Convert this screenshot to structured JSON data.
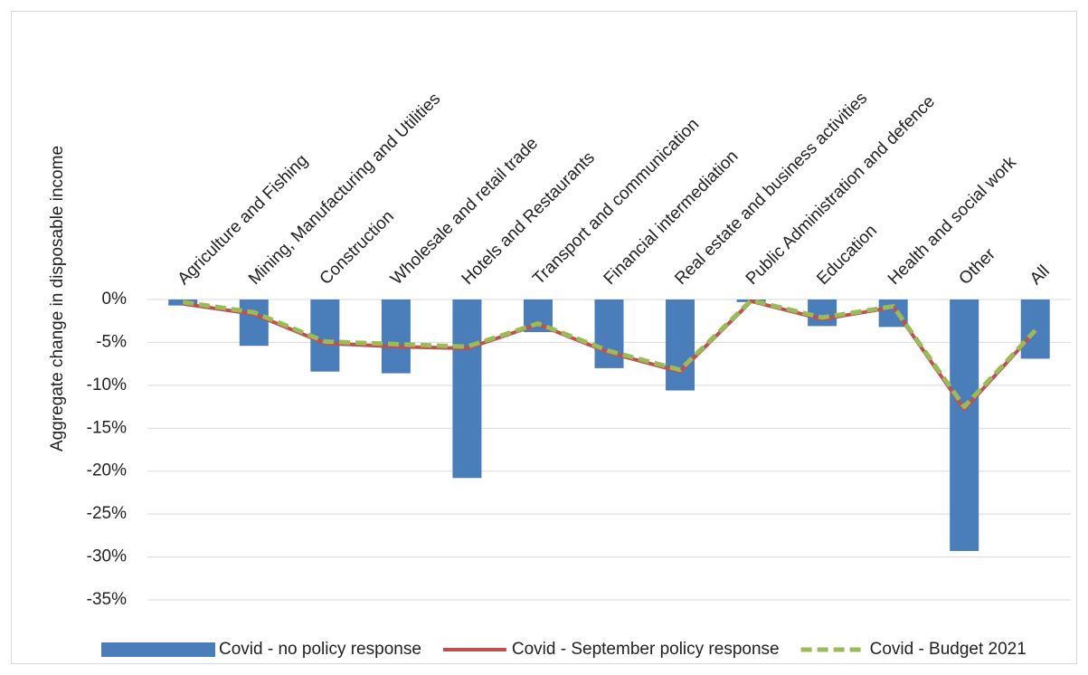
{
  "chart_data": {
    "type": "bar",
    "y_label": "Aggregate change in disposable income",
    "categories": [
      "Agriculture and Fishing",
      "Mining, Manufacturing and Utilities",
      "Construction",
      "Wholesale and retail trade",
      "Hotels and Restaurants",
      "Transport and communication",
      "Financial intermediation",
      "Real estate and business activities",
      "Public Administration and defence",
      "Education",
      "Health and social work",
      "Other",
      "All"
    ],
    "series": [
      {
        "name": "Covid - no policy response",
        "type": "bar",
        "color": "#4a7ebb",
        "values": [
          -0.7,
          -5.4,
          -8.4,
          -8.6,
          -20.8,
          -3.8,
          -8.0,
          -10.6,
          -0.3,
          -3.1,
          -3.2,
          -29.3,
          -6.9
        ]
      },
      {
        "name": "Covid - September policy response",
        "type": "line",
        "color": "#c0504d",
        "dashed": false,
        "values": [
          -0.5,
          -1.7,
          -5.1,
          -5.5,
          -5.7,
          -2.9,
          -6.2,
          -8.4,
          -0.2,
          -2.3,
          -0.9,
          -12.8,
          -3.7
        ]
      },
      {
        "name": "Covid - Budget 2021",
        "type": "line",
        "color": "#9bbb59",
        "dashed": true,
        "values": [
          -0.3,
          -1.5,
          -4.9,
          -5.2,
          -5.5,
          -2.8,
          -6.0,
          -8.2,
          -0.1,
          -2.1,
          -0.8,
          -12.5,
          -3.6
        ]
      }
    ],
    "ylim": [
      -35,
      0
    ],
    "yticks": [
      {
        "value": 0,
        "label": "0%"
      },
      {
        "value": -5,
        "label": "-5%"
      },
      {
        "value": -10,
        "label": "-10%"
      },
      {
        "value": -15,
        "label": "-15%"
      },
      {
        "value": -20,
        "label": "-20%"
      },
      {
        "value": -25,
        "label": "-25%"
      },
      {
        "value": -30,
        "label": "-30%"
      },
      {
        "value": -35,
        "label": "-35%"
      }
    ],
    "grid": true,
    "legend": "bottom"
  }
}
